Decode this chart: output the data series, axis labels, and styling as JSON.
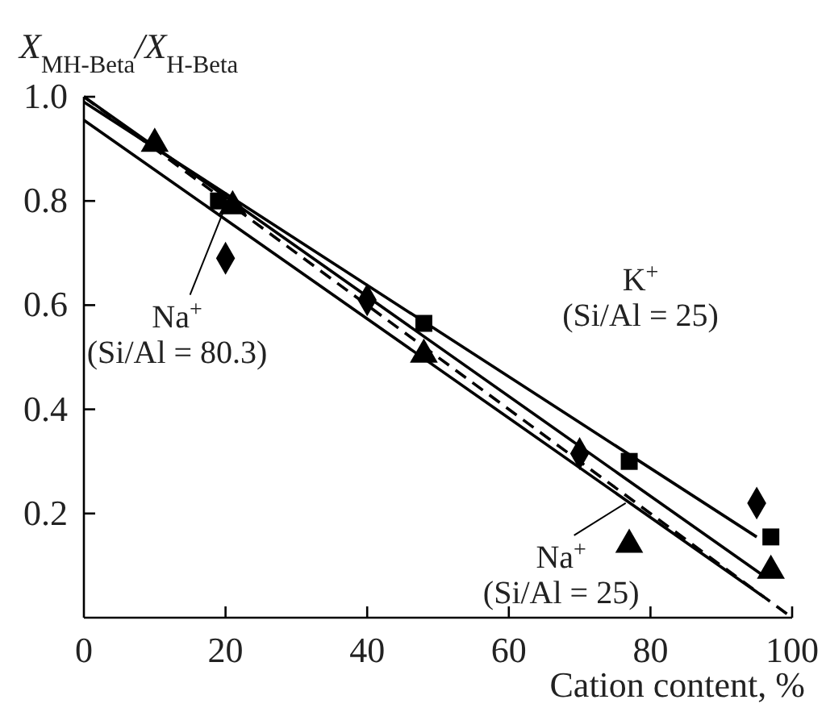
{
  "chart_data": {
    "type": "scatter",
    "xlabel": "Cation content, %",
    "ylabel": "X$_{MH-Beta}$/X$_{H-Beta}$",
    "xlim": [
      0,
      100
    ],
    "ylim": [
      0,
      1
    ],
    "xticks": [
      0,
      20,
      40,
      60,
      80,
      100
    ],
    "yticks": [
      {
        "value": 0.2,
        "label": "0.2"
      },
      {
        "value": 0.4,
        "label": "0.4"
      },
      {
        "value": 0.6,
        "label": "0.6"
      },
      {
        "value": 0.8,
        "label": "0.8"
      },
      {
        "value": 1,
        "label": "1.0"
      }
    ],
    "grid": false,
    "series": [
      {
        "marker": "square",
        "color": "#000000",
        "x": [
          19,
          48,
          77,
          97
        ],
        "values": [
          0.8,
          0.565,
          0.3,
          0.155
        ]
      },
      {
        "marker": "diamond",
        "color": "#000000",
        "x": [
          20,
          40,
          70,
          95
        ],
        "values": [
          0.69,
          0.61,
          0.315,
          0.22
        ]
      },
      {
        "marker": "triangle",
        "color": "#000000",
        "x": [
          10,
          21,
          48,
          77,
          97
        ],
        "values": [
          0.91,
          0.79,
          0.505,
          0.14,
          0.09
        ]
      },
      {
        "type": "line",
        "line_style": "solid",
        "color": "#000000",
        "x": [
          0,
          95
        ],
        "values": [
          0.99,
          0.155
        ]
      },
      {
        "type": "line",
        "line_style": "solid",
        "color": "#000000",
        "x": [
          0,
          96
        ],
        "values": [
          1.0,
          0.08
        ]
      },
      {
        "type": "line",
        "line_style": "solid",
        "color": "#000000",
        "x": [
          0,
          96
        ],
        "values": [
          0.955,
          0.04
        ]
      },
      {
        "type": "line",
        "line_style": "dashed",
        "color": "#000000",
        "x": [
          0,
          100
        ],
        "values": [
          1.0,
          0.0
        ]
      }
    ],
    "annotations": [
      "K$^{+}$\n(Si/Al = 25)",
      {
        "text": "Na$^{+}$\n(Si/Al = 80.3)",
        "x": 20,
        "y": 0.79
      },
      {
        "text": "Na$^{+}$\n(Si/Al = 25)",
        "x": 76.5,
        "y": 0.22
      }
    ]
  }
}
